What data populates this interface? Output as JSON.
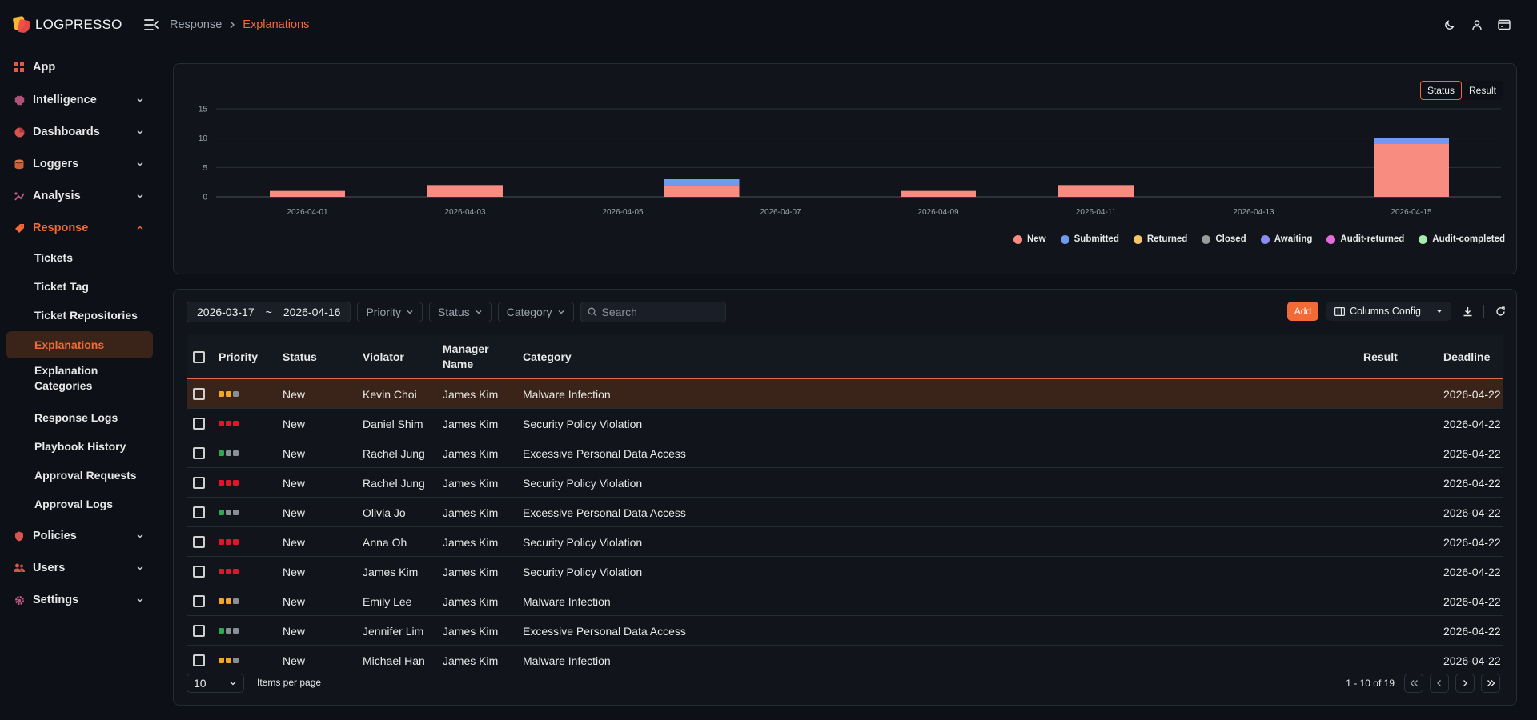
{
  "app": {
    "brand": "LOGPRESSO"
  },
  "breadcrumb": {
    "parent": "Response",
    "current": "Explanations"
  },
  "sidebar": {
    "app_label": "App",
    "sections": [
      {
        "label": "Intelligence"
      },
      {
        "label": "Dashboards"
      },
      {
        "label": "Loggers"
      },
      {
        "label": "Analysis"
      },
      {
        "label": "Response"
      },
      {
        "label": "Policies"
      },
      {
        "label": "Users"
      },
      {
        "label": "Settings"
      }
    ],
    "response_items": [
      {
        "label": "Tickets"
      },
      {
        "label": "Ticket Tag"
      },
      {
        "label": "Ticket Repositories"
      },
      {
        "label": "Explanations"
      },
      {
        "label": "Explanation Categories"
      },
      {
        "label": "Response Logs"
      },
      {
        "label": "Playbook History"
      },
      {
        "label": "Approval Requests"
      },
      {
        "label": "Approval Logs"
      }
    ]
  },
  "chart_toggle": {
    "status": "Status",
    "result": "Result",
    "active": "Status"
  },
  "chart_data": {
    "type": "bar",
    "stacked": true,
    "x": [
      "2026-04-01",
      "2026-04-02",
      "2026-04-03",
      "2026-04-04",
      "2026-04-05",
      "2026-04-06",
      "2026-04-07",
      "2026-04-08",
      "2026-04-09",
      "2026-04-10",
      "2026-04-11",
      "2026-04-12",
      "2026-04-13",
      "2026-04-14",
      "2026-04-15"
    ],
    "x_tick_labels": [
      "2026-04-01",
      "2026-04-03",
      "2026-04-05",
      "2026-04-07",
      "2026-04-09",
      "2026-04-11",
      "2026-04-13",
      "2026-04-15"
    ],
    "y_ticks": [
      0,
      5,
      10,
      15
    ],
    "ylim": [
      0,
      15
    ],
    "grid": true,
    "legend_position": "bottom-right",
    "series": [
      {
        "name": "New",
        "color": "#f98c80",
        "values": [
          1,
          0,
          2,
          0,
          0,
          2,
          0,
          0,
          1,
          0,
          2,
          0,
          0,
          0,
          9
        ]
      },
      {
        "name": "Submitted",
        "color": "#6e9bf0",
        "values": [
          0,
          0,
          0,
          0,
          0,
          1,
          0,
          0,
          0,
          0,
          0,
          0,
          0,
          0,
          1
        ]
      },
      {
        "name": "Returned",
        "color": "#f7c46c",
        "values": [
          0,
          0,
          0,
          0,
          0,
          0,
          0,
          0,
          0,
          0,
          0,
          0,
          0,
          0,
          0
        ]
      },
      {
        "name": "Closed",
        "color": "#9b9b9b",
        "values": [
          0,
          0,
          0,
          0,
          0,
          0,
          0,
          0,
          0,
          0,
          0,
          0,
          0,
          0,
          0
        ]
      },
      {
        "name": "Awaiting",
        "color": "#8a8cf2",
        "values": [
          0,
          0,
          0,
          0,
          0,
          0,
          0,
          0,
          0,
          0,
          0,
          0,
          0,
          0,
          0
        ]
      },
      {
        "name": "Audit-returned",
        "color": "#e66ad8",
        "values": [
          0,
          0,
          0,
          0,
          0,
          0,
          0,
          0,
          0,
          0,
          0,
          0,
          0,
          0,
          0
        ]
      },
      {
        "name": "Audit-completed",
        "color": "#a9ecb0",
        "values": [
          0,
          0,
          0,
          0,
          0,
          0,
          0,
          0,
          0,
          0,
          0,
          0,
          0,
          0,
          0
        ]
      }
    ]
  },
  "filters": {
    "date_from": "2026-03-17",
    "date_sep": "~",
    "date_to": "2026-04-16",
    "priority": "Priority",
    "status": "Status",
    "category": "Category",
    "search_placeholder": "Search"
  },
  "toolbar": {
    "add_label": "Add",
    "columns_label": "Columns Config"
  },
  "table": {
    "columns": {
      "priority": "Priority",
      "status": "Status",
      "violator": "Violator",
      "manager": "Manager Name",
      "category": "Category",
      "result": "Result",
      "deadline": "Deadline"
    },
    "rows": [
      {
        "priority": [
          "#f5a623",
          "#f5a623",
          "#8a8f96"
        ],
        "status": "New",
        "violator": "Kevin Choi",
        "manager": "James Kim",
        "category": "Malware Infection",
        "result": "",
        "deadline": "2026-04-22"
      },
      {
        "priority": [
          "#e5142c",
          "#e5142c",
          "#e5142c"
        ],
        "status": "New",
        "violator": "Daniel Shim",
        "manager": "James Kim",
        "category": "Security Policy Violation",
        "result": "",
        "deadline": "2026-04-22"
      },
      {
        "priority": [
          "#2fa84f",
          "#8a8f96",
          "#8a8f96"
        ],
        "status": "New",
        "violator": "Rachel Jung",
        "manager": "James Kim",
        "category": "Excessive Personal Data Access",
        "result": "",
        "deadline": "2026-04-22"
      },
      {
        "priority": [
          "#e5142c",
          "#e5142c",
          "#e5142c"
        ],
        "status": "New",
        "violator": "Rachel Jung",
        "manager": "James Kim",
        "category": "Security Policy Violation",
        "result": "",
        "deadline": "2026-04-22"
      },
      {
        "priority": [
          "#2fa84f",
          "#8a8f96",
          "#8a8f96"
        ],
        "status": "New",
        "violator": "Olivia Jo",
        "manager": "James Kim",
        "category": "Excessive Personal Data Access",
        "result": "",
        "deadline": "2026-04-22"
      },
      {
        "priority": [
          "#e5142c",
          "#e5142c",
          "#e5142c"
        ],
        "status": "New",
        "violator": "Anna Oh",
        "manager": "James Kim",
        "category": "Security Policy Violation",
        "result": "",
        "deadline": "2026-04-22"
      },
      {
        "priority": [
          "#e5142c",
          "#e5142c",
          "#e5142c"
        ],
        "status": "New",
        "violator": "James Kim",
        "manager": "James Kim",
        "category": "Security Policy Violation",
        "result": "",
        "deadline": "2026-04-22"
      },
      {
        "priority": [
          "#f5a623",
          "#f5a623",
          "#8a8f96"
        ],
        "status": "New",
        "violator": "Emily Lee",
        "manager": "James Kim",
        "category": "Malware Infection",
        "result": "",
        "deadline": "2026-04-22"
      },
      {
        "priority": [
          "#2fa84f",
          "#8a8f96",
          "#8a8f96"
        ],
        "status": "New",
        "violator": "Jennifer Lim",
        "manager": "James Kim",
        "category": "Excessive Personal Data Access",
        "result": "",
        "deadline": "2026-04-22"
      },
      {
        "priority": [
          "#f5a623",
          "#f5a623",
          "#8a8f96"
        ],
        "status": "New",
        "violator": "Michael Han",
        "manager": "James Kim",
        "category": "Malware Infection",
        "result": "",
        "deadline": "2026-04-22"
      }
    ]
  },
  "pagination": {
    "per_page": "10",
    "per_page_label": "Items per page",
    "range": "1 - 10 of 19"
  },
  "colors": {
    "accent": "#f26a35",
    "background": "#0d1117",
    "selected_row": "#3a2419"
  },
  "icons": {
    "sidebar": [
      "grid-icon",
      "brain-icon",
      "pie-chart-icon",
      "database-icon",
      "analysis-icon",
      "response-icon",
      "shield-icon",
      "users-icon",
      "gear-icon"
    ],
    "top": [
      "moon-icon",
      "user-icon",
      "card-icon"
    ]
  }
}
